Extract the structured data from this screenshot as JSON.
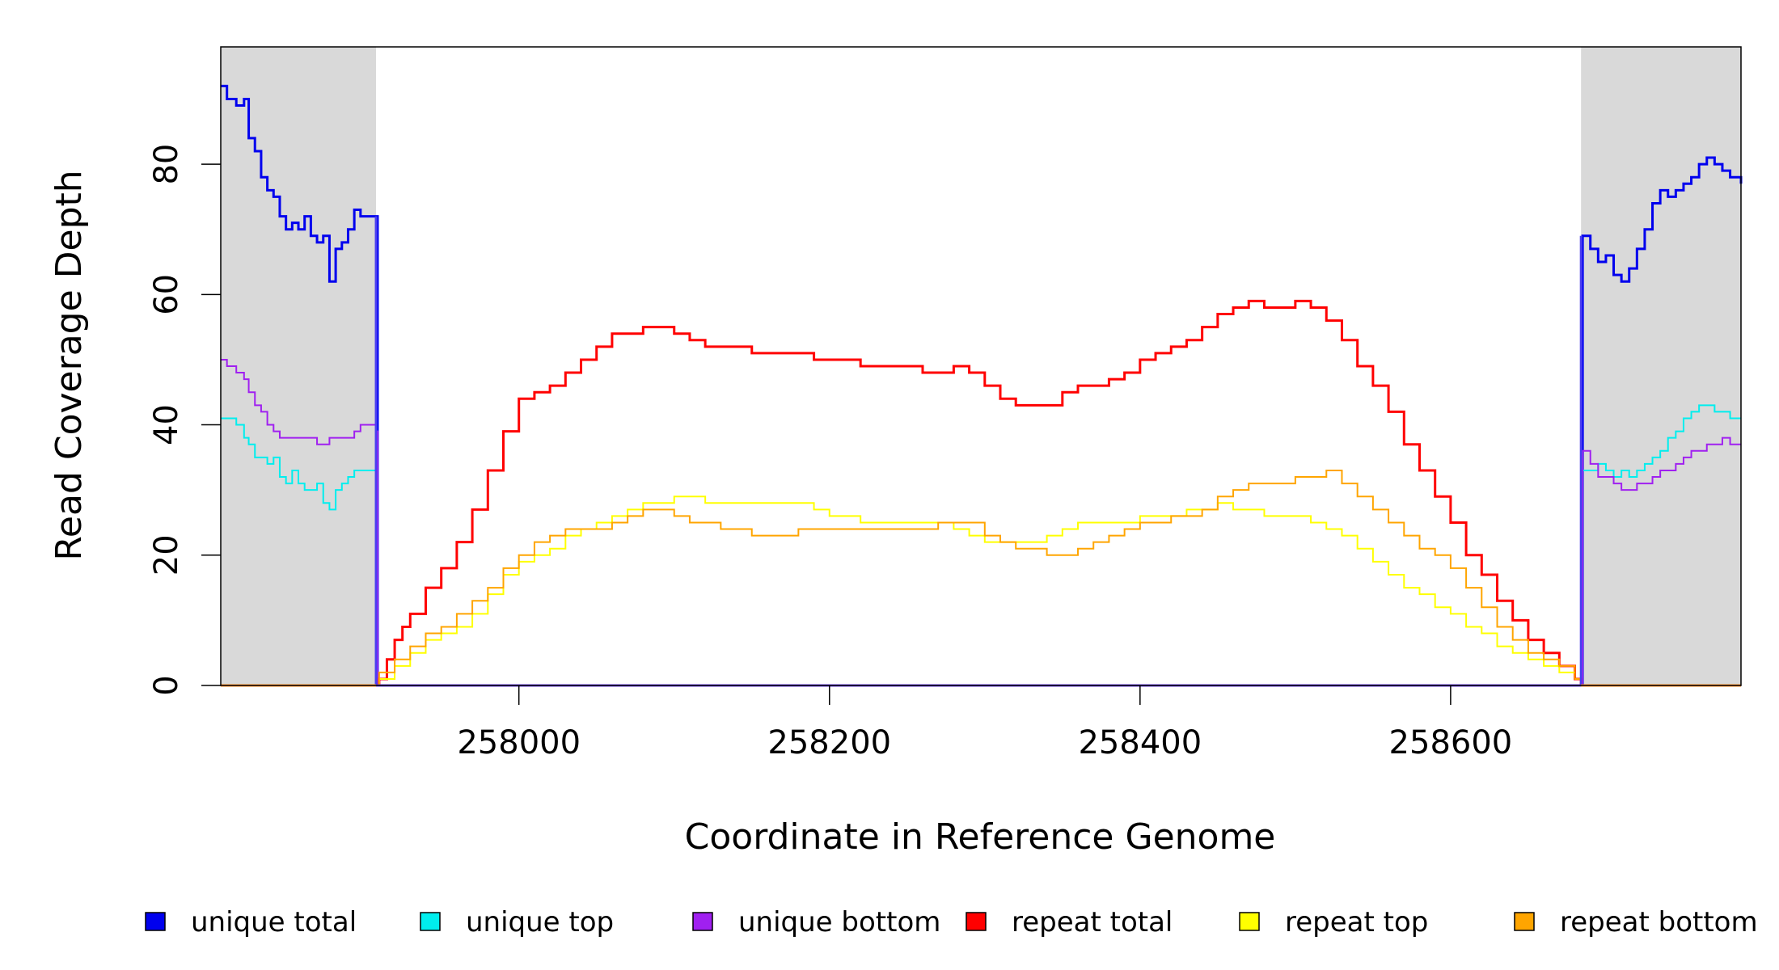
{
  "chart_data": {
    "type": "line",
    "xlabel": "Coordinate in Reference Genome",
    "ylabel": "Read Coverage Depth",
    "xlim": [
      257808,
      258787
    ],
    "ylim": [
      0,
      98
    ],
    "xticks": [
      258000,
      258200,
      258400,
      258600
    ],
    "yticks": [
      0,
      20,
      40,
      60,
      80
    ],
    "repeat_region": [
      257908,
      258684
    ],
    "shaded_regions": [
      [
        257808,
        257908
      ],
      [
        258684,
        258787
      ]
    ],
    "legend": [
      "unique total",
      "unique top",
      "unique bottom",
      "repeat total",
      "repeat top",
      "repeat bottom"
    ],
    "series": [
      {
        "name": "unique total",
        "color": "#0000ee",
        "width": 3,
        "x": [
          257808,
          257812,
          257818,
          257823,
          257826,
          257830,
          257834,
          257838,
          257842,
          257846,
          257850,
          257854,
          257858,
          257862,
          257866,
          257870,
          257874,
          257878,
          257882,
          257886,
          257890,
          257894,
          257898,
          257902,
          257906,
          257908,
          257909,
          258684,
          258685,
          258690,
          258695,
          258700,
          258705,
          258710,
          258715,
          258720,
          258725,
          258730,
          258735,
          258740,
          258745,
          258750,
          258755,
          258760,
          258765,
          258770,
          258775,
          258780,
          258787
        ],
        "y": [
          92,
          90,
          89,
          90,
          84,
          82,
          78,
          76,
          75,
          72,
          70,
          71,
          70,
          72,
          69,
          68,
          69,
          62,
          67,
          68,
          70,
          73,
          72,
          72,
          72,
          72,
          0,
          0,
          69,
          67,
          65,
          66,
          63,
          62,
          64,
          67,
          70,
          74,
          76,
          75,
          76,
          77,
          78,
          80,
          81,
          80,
          79,
          78,
          77
        ]
      },
      {
        "name": "unique top",
        "color": "#00eeee",
        "width": 2,
        "x": [
          257808,
          257812,
          257818,
          257823,
          257826,
          257830,
          257834,
          257838,
          257842,
          257846,
          257850,
          257854,
          257858,
          257862,
          257866,
          257870,
          257874,
          257878,
          257882,
          257886,
          257890,
          257894,
          257898,
          257902,
          257906,
          257908,
          257909,
          258684,
          258685,
          258690,
          258695,
          258700,
          258705,
          258710,
          258715,
          258720,
          258725,
          258730,
          258735,
          258740,
          258745,
          258750,
          258755,
          258760,
          258765,
          258770,
          258775,
          258780,
          258787
        ],
        "y": [
          41,
          41,
          40,
          38,
          37,
          35,
          35,
          34,
          35,
          32,
          31,
          33,
          31,
          30,
          30,
          31,
          28,
          27,
          30,
          31,
          32,
          33,
          33,
          33,
          33,
          33,
          0,
          0,
          33,
          33,
          34,
          33,
          32,
          33,
          32,
          33,
          34,
          35,
          36,
          38,
          39,
          41,
          42,
          43,
          43,
          42,
          42,
          41,
          41
        ]
      },
      {
        "name": "unique bottom",
        "color": "#a020f0",
        "width": 2,
        "x": [
          257808,
          257812,
          257818,
          257823,
          257826,
          257830,
          257834,
          257838,
          257842,
          257846,
          257850,
          257854,
          257858,
          257862,
          257866,
          257870,
          257874,
          257878,
          257882,
          257886,
          257890,
          257894,
          257898,
          257902,
          257906,
          257908,
          257909,
          258684,
          258685,
          258690,
          258695,
          258700,
          258705,
          258710,
          258715,
          258720,
          258725,
          258730,
          258735,
          258740,
          258745,
          258750,
          258755,
          258760,
          258765,
          258770,
          258775,
          258780,
          258787
        ],
        "y": [
          50,
          49,
          48,
          47,
          45,
          43,
          42,
          40,
          39,
          38,
          38,
          38,
          38,
          38,
          38,
          37,
          37,
          38,
          38,
          38,
          38,
          39,
          40,
          40,
          40,
          39,
          0,
          0,
          36,
          34,
          32,
          32,
          31,
          30,
          30,
          31,
          31,
          32,
          33,
          33,
          34,
          35,
          36,
          36,
          37,
          37,
          38,
          37,
          37
        ]
      },
      {
        "name": "repeat total",
        "color": "#ff0000",
        "width": 3,
        "x": [
          257908,
          257910,
          257915,
          257920,
          257925,
          257930,
          257940,
          257950,
          257960,
          257970,
          257980,
          257990,
          258000,
          258010,
          258020,
          258030,
          258040,
          258050,
          258060,
          258070,
          258080,
          258090,
          258100,
          258110,
          258120,
          258130,
          258140,
          258150,
          258160,
          258170,
          258180,
          258190,
          258200,
          258210,
          258220,
          258230,
          258240,
          258250,
          258260,
          258270,
          258280,
          258290,
          258300,
          258310,
          258320,
          258330,
          258340,
          258350,
          258360,
          258370,
          258380,
          258390,
          258400,
          258410,
          258420,
          258430,
          258440,
          258450,
          258460,
          258470,
          258480,
          258490,
          258500,
          258510,
          258520,
          258530,
          258540,
          258550,
          258560,
          258570,
          258580,
          258590,
          258600,
          258610,
          258620,
          258630,
          258640,
          258650,
          258660,
          258670,
          258680,
          258684
        ],
        "y": [
          0,
          1,
          4,
          7,
          9,
          11,
          15,
          18,
          22,
          27,
          33,
          39,
          44,
          45,
          46,
          48,
          50,
          52,
          54,
          54,
          55,
          55,
          54,
          53,
          52,
          52,
          52,
          51,
          51,
          51,
          51,
          50,
          50,
          50,
          49,
          49,
          49,
          49,
          48,
          48,
          49,
          48,
          46,
          44,
          43,
          43,
          43,
          45,
          46,
          46,
          47,
          48,
          50,
          51,
          52,
          53,
          55,
          57,
          58,
          59,
          58,
          58,
          59,
          58,
          56,
          53,
          49,
          46,
          42,
          37,
          33,
          29,
          25,
          20,
          17,
          13,
          10,
          7,
          5,
          3,
          1,
          0
        ]
      },
      {
        "name": "repeat top",
        "color": "#ffff00",
        "width": 2,
        "x": [
          257908,
          257910,
          257920,
          257930,
          257940,
          257950,
          257960,
          257970,
          257980,
          257990,
          258000,
          258010,
          258020,
          258030,
          258040,
          258050,
          258060,
          258070,
          258080,
          258090,
          258100,
          258110,
          258120,
          258130,
          258140,
          258150,
          258160,
          258170,
          258180,
          258190,
          258200,
          258210,
          258220,
          258230,
          258240,
          258250,
          258260,
          258270,
          258280,
          258290,
          258300,
          258310,
          258320,
          258330,
          258340,
          258350,
          258360,
          258370,
          258380,
          258390,
          258400,
          258410,
          258420,
          258430,
          258440,
          258450,
          258460,
          258470,
          258480,
          258490,
          258500,
          258510,
          258520,
          258530,
          258540,
          258550,
          258560,
          258570,
          258580,
          258590,
          258600,
          258610,
          258620,
          258630,
          258640,
          258650,
          258660,
          258670,
          258680,
          258684
        ],
        "y": [
          0,
          1,
          3,
          5,
          7,
          8,
          9,
          11,
          14,
          17,
          19,
          20,
          21,
          23,
          24,
          25,
          26,
          27,
          28,
          28,
          29,
          29,
          28,
          28,
          28,
          28,
          28,
          28,
          28,
          27,
          26,
          26,
          25,
          25,
          25,
          25,
          25,
          25,
          24,
          23,
          22,
          22,
          22,
          22,
          23,
          24,
          25,
          25,
          25,
          25,
          26,
          26,
          26,
          27,
          27,
          28,
          27,
          27,
          26,
          26,
          26,
          25,
          24,
          23,
          21,
          19,
          17,
          15,
          14,
          12,
          11,
          9,
          8,
          6,
          5,
          4,
          3,
          2,
          1,
          0
        ]
      },
      {
        "name": "repeat bottom",
        "color": "#ffa500",
        "width": 2,
        "x": [
          257908,
          257910,
          257920,
          257930,
          257940,
          257950,
          257960,
          257970,
          257980,
          257990,
          258000,
          258010,
          258020,
          258030,
          258040,
          258050,
          258060,
          258070,
          258080,
          258090,
          258100,
          258110,
          258120,
          258130,
          258140,
          258150,
          258160,
          258170,
          258180,
          258190,
          258200,
          258210,
          258220,
          258230,
          258240,
          258250,
          258260,
          258270,
          258280,
          258290,
          258300,
          258310,
          258320,
          258330,
          258340,
          258350,
          258360,
          258370,
          258380,
          258390,
          258400,
          258410,
          258420,
          258430,
          258440,
          258450,
          258460,
          258470,
          258480,
          258490,
          258500,
          258510,
          258520,
          258530,
          258540,
          258550,
          258560,
          258570,
          258580,
          258590,
          258600,
          258610,
          258620,
          258630,
          258640,
          258650,
          258660,
          258670,
          258680,
          258684
        ],
        "y": [
          0,
          2,
          4,
          6,
          8,
          9,
          11,
          13,
          15,
          18,
          20,
          22,
          23,
          24,
          24,
          24,
          25,
          26,
          27,
          27,
          26,
          25,
          25,
          24,
          24,
          23,
          23,
          23,
          24,
          24,
          24,
          24,
          24,
          24,
          24,
          24,
          24,
          25,
          25,
          25,
          23,
          22,
          21,
          21,
          20,
          20,
          21,
          22,
          23,
          24,
          25,
          25,
          26,
          26,
          27,
          29,
          30,
          31,
          31,
          31,
          32,
          32,
          33,
          31,
          29,
          27,
          25,
          23,
          21,
          20,
          18,
          15,
          12,
          9,
          7,
          5,
          4,
          3,
          1,
          0
        ]
      }
    ]
  }
}
